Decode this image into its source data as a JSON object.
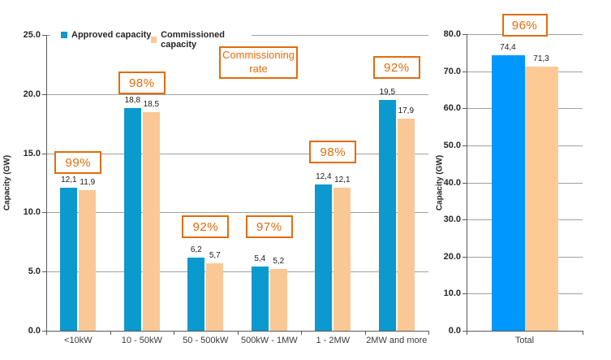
{
  "colors": {
    "accent_orange": "#e36c0a",
    "gridline": "#a0a0a0",
    "axis": "#595959",
    "text_dark": "#262626",
    "approved_left": "#0a9acd",
    "commissioned_left": "#fac896",
    "approved_right": "#0098fc",
    "commissioned_right": "#fdca96"
  },
  "legend": {
    "items": [
      {
        "label": "Approved capacity"
      },
      {
        "label": "Commissioned capacity"
      }
    ]
  },
  "chart_data": [
    {
      "id": "left",
      "type": "bar",
      "title": "",
      "xlabel": "",
      "ylabel": "Capacity (GW)",
      "ylim": [
        0,
        25
      ],
      "grid": true,
      "legend_position": "top",
      "ytick_labels": [
        "25.0",
        "20.0",
        "15.0",
        "10.0",
        "5.0",
        "0.0"
      ],
      "categories": [
        "<10kW",
        "10 - 50kW",
        "50 - 500kW",
        "500kW - 1MW",
        "1 - 2MW",
        "2MW and more"
      ],
      "series": [
        {
          "name": "Approved capacity",
          "color": "#0a9acd",
          "values": [
            12.1,
            18.8,
            6.2,
            5.4,
            12.4,
            19.5
          ],
          "value_labels": [
            "12,1",
            "18,8",
            "6,2",
            "5,4",
            "12,4",
            "19,5"
          ]
        },
        {
          "name": "Commissioned capacity",
          "color": "#fac896",
          "values": [
            11.9,
            18.5,
            5.7,
            5.2,
            12.1,
            17.9
          ],
          "value_labels": [
            "11,9",
            "18,5",
            "5,7",
            "5,2",
            "12,1",
            "17,9"
          ]
        }
      ],
      "commissioning_rates": [
        "99%",
        "98%",
        "92%",
        "97%",
        "98%",
        "92%"
      ],
      "annotation": "Commissioning rate"
    },
    {
      "id": "right",
      "type": "bar",
      "title": "",
      "xlabel": "",
      "ylabel": "Capacity (GW)",
      "ylim": [
        0,
        80
      ],
      "grid": true,
      "legend_position": "none",
      "ytick_labels": [
        "80.0",
        "70.0",
        "60.0",
        "50.0",
        "40.0",
        "30.0",
        "20.0",
        "10.0",
        "0.0"
      ],
      "categories": [
        "Total"
      ],
      "series": [
        {
          "name": "Approved capacity",
          "color": "#0098fc",
          "values": [
            74.4
          ],
          "value_labels": [
            "74,4"
          ]
        },
        {
          "name": "Commissioned capacity",
          "color": "#fdca96",
          "values": [
            71.3
          ],
          "value_labels": [
            "71,3"
          ]
        }
      ],
      "commissioning_rates": [
        "96%"
      ]
    }
  ]
}
